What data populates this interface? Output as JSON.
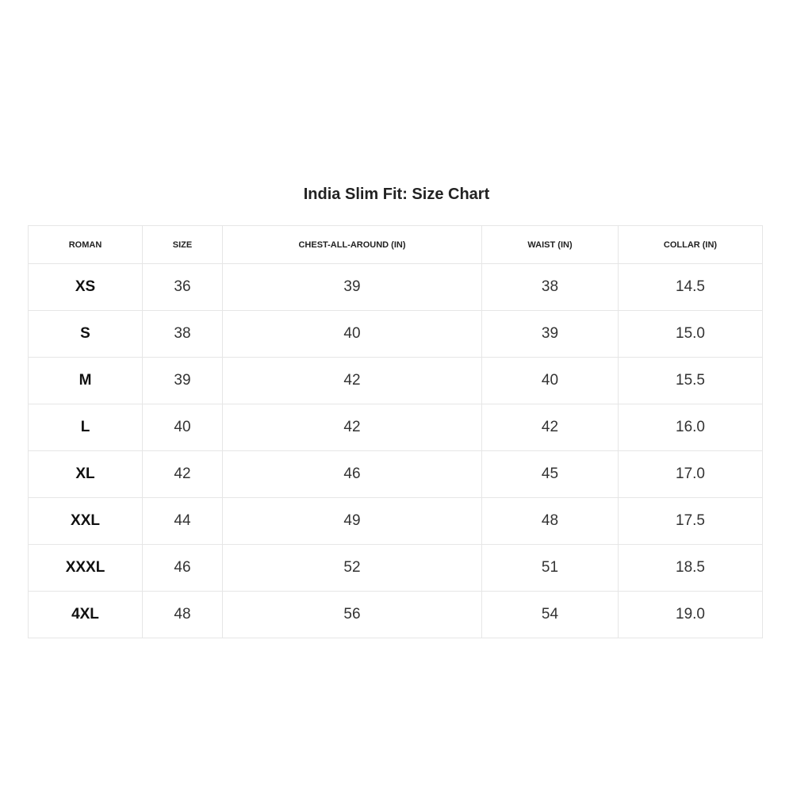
{
  "title": "India Slim Fit: Size Chart",
  "headers": [
    "ROMAN",
    "SIZE",
    "CHEST-ALL-AROUND (IN)",
    "WAIST (IN)",
    "COLLAR (IN)"
  ],
  "rows": [
    [
      "XS",
      "36",
      "39",
      "38",
      "14.5"
    ],
    [
      "S",
      "38",
      "40",
      "39",
      "15.0"
    ],
    [
      "M",
      "39",
      "42",
      "40",
      "15.5"
    ],
    [
      "L",
      "40",
      "42",
      "42",
      "16.0"
    ],
    [
      "XL",
      "42",
      "46",
      "45",
      "17.0"
    ],
    [
      "XXL",
      "44",
      "49",
      "48",
      "17.5"
    ],
    [
      "XXXL",
      "46",
      "52",
      "51",
      "18.5"
    ],
    [
      "4XL",
      "48",
      "56",
      "54",
      "19.0"
    ]
  ]
}
